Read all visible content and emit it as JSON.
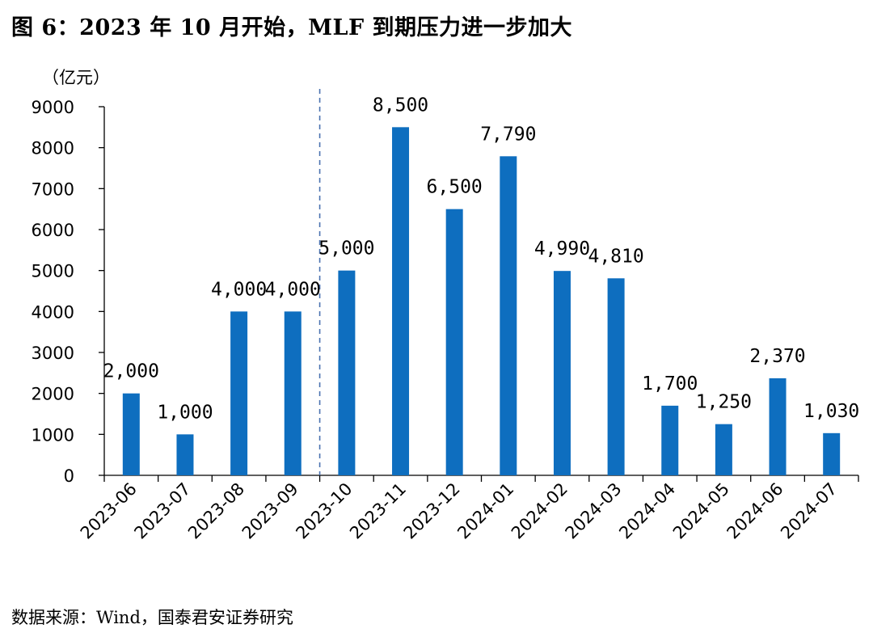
{
  "figure": {
    "title": "图 6：2023 年 10 月开始，MLF 到期压力进一步加大",
    "source": "数据来源：Wind，国泰君安证券研究"
  },
  "chart_data": {
    "type": "bar",
    "unit_label": "（亿元）",
    "categories": [
      "2023-06",
      "2023-07",
      "2023-08",
      "2023-09",
      "2023-10",
      "2023-11",
      "2023-12",
      "2024-01",
      "2024-02",
      "2024-03",
      "2024-04",
      "2024-05",
      "2024-06",
      "2024-07"
    ],
    "values": [
      2000,
      1000,
      4000,
      4000,
      5000,
      8500,
      6500,
      7790,
      4990,
      4810,
      1700,
      1250,
      2370,
      1030
    ],
    "data_labels": [
      "2,000",
      "1,000",
      "4,000",
      "4,000",
      "5,000",
      "8,500",
      "6,500",
      "7,790",
      "4,990",
      "4,810",
      "1,700",
      "1,250",
      "2,370",
      "1,030"
    ],
    "ylim": [
      0,
      9000
    ],
    "yticks": [
      0,
      1000,
      2000,
      3000,
      4000,
      5000,
      6000,
      7000,
      8000,
      9000
    ],
    "bar_color": "#0e6ebf",
    "divider_line": {
      "between": [
        "2023-09",
        "2023-10"
      ],
      "style": "dashed",
      "color": "#4a72b0"
    },
    "grid": false,
    "legend": "none"
  }
}
